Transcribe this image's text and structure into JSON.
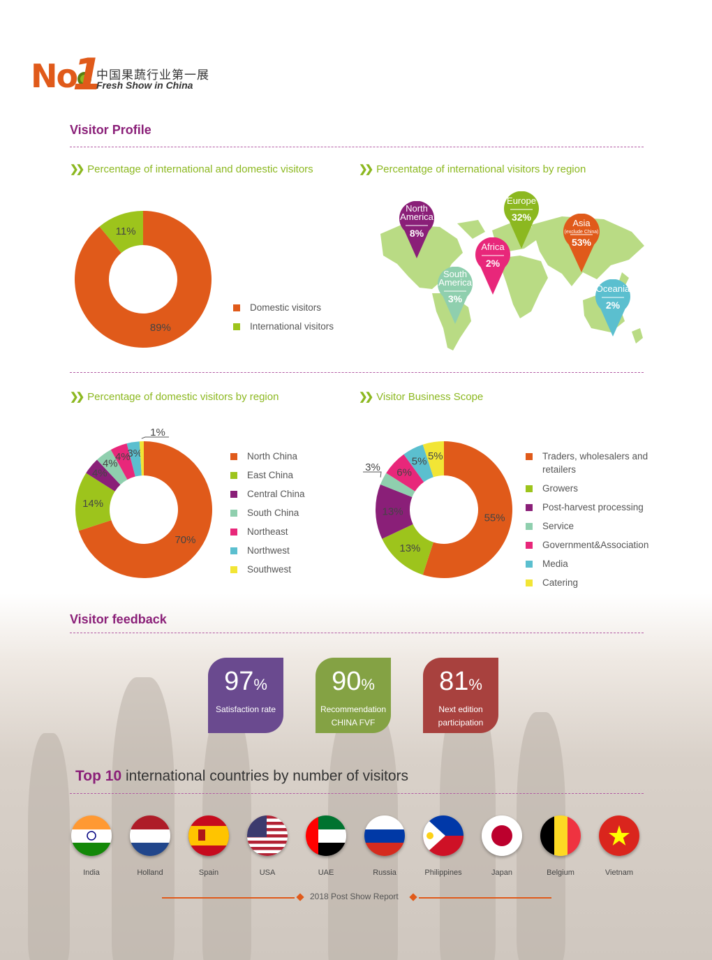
{
  "logo": {
    "no": "No",
    "one": "1",
    "cn": "中国果蔬行业第一展",
    "en": "Fresh Show in China"
  },
  "visitor_profile": {
    "title": "Visitor Profile",
    "intl_domestic": {
      "heading": "Percentage of international and domestic visitors",
      "legend": [
        "Domestic visitors",
        "International visitors"
      ]
    },
    "intl_region": {
      "heading": "Percentatge of international visitors by region",
      "pins": [
        {
          "name": "North America",
          "value": "8%",
          "color": "#8a1f78"
        },
        {
          "name": "South America",
          "value": "3%",
          "color": "#8fcfae"
        },
        {
          "name": "Africa",
          "value": "2%",
          "color": "#e8277a"
        },
        {
          "name": "Europe",
          "value": "32%",
          "color": "#8cb820"
        },
        {
          "name": "Asia",
          "sub": "(exclude China)",
          "value": "53%",
          "color": "#e05a1a"
        },
        {
          "name": "Oceania",
          "value": "2%",
          "color": "#5bbfcf"
        }
      ]
    },
    "domestic_region": {
      "heading": "Percentage of domestic visitors by region",
      "legend": [
        "North China",
        "East China",
        "Central China",
        "South China",
        "Northeast",
        "Northwest",
        "Southwest"
      ]
    },
    "business_scope": {
      "heading": "Visitor Business Scope",
      "legend": [
        "Traders, wholesalers and retailers",
        "Growers",
        "Post-harvest processing",
        "Service",
        "Government&Association",
        "Media",
        "Catering"
      ]
    }
  },
  "chart_data": [
    {
      "type": "pie",
      "labels": [
        "Domestic visitors",
        "International visitors"
      ],
      "values": [
        89,
        11
      ],
      "value_labels": [
        "89%",
        "11%"
      ],
      "colors": [
        "#e05a1a",
        "#9dc41c"
      ]
    },
    {
      "type": "pie",
      "labels": [
        "North China",
        "East China",
        "Central China",
        "South China",
        "Northeast",
        "Northwest",
        "Southwest"
      ],
      "values": [
        70,
        14,
        4,
        4,
        4,
        3,
        1
      ],
      "value_labels": [
        "70%",
        "14%",
        "4%",
        "4%",
        "4%",
        "3%",
        "1%"
      ],
      "colors": [
        "#e05a1a",
        "#9dc41c",
        "#8a1f78",
        "#8fcfae",
        "#e8277a",
        "#5bbfcf",
        "#f2e535"
      ]
    },
    {
      "type": "pie",
      "labels": [
        "Traders, wholesalers and retailers",
        "Growers",
        "Post-harvest processing",
        "Service",
        "Government&Association",
        "Media",
        "Catering"
      ],
      "values": [
        55,
        13,
        13,
        3,
        6,
        5,
        5
      ],
      "value_labels": [
        "55%",
        "13%",
        "13%",
        "3%",
        "6%",
        "5%",
        "5%"
      ],
      "colors": [
        "#e05a1a",
        "#9dc41c",
        "#8a1f78",
        "#8fcfae",
        "#e8277a",
        "#5bbfcf",
        "#f2e535"
      ]
    }
  ],
  "feedback": {
    "title": "Visitor feedback",
    "cards": [
      {
        "value": "97",
        "unit": "%",
        "caption1": "Satisfaction rate",
        "caption2": "",
        "color": "#6a4a8f"
      },
      {
        "value": "90",
        "unit": "%",
        "caption1": "Recommendation",
        "caption2": "CHINA FVF",
        "color": "#84a244"
      },
      {
        "value": "81",
        "unit": "%",
        "caption1": "Next edition",
        "caption2": "participation",
        "color": "#a8413e"
      }
    ]
  },
  "top10": {
    "title_bold": "Top 10",
    "title_rest": "international countries by number of visitors",
    "countries": [
      "India",
      "Holland",
      "Spain",
      "USA",
      "UAE",
      "Russia",
      "Philippines",
      "Japan",
      "Belgium",
      "Vietnam"
    ]
  },
  "footer": "2018 Post Show Report"
}
